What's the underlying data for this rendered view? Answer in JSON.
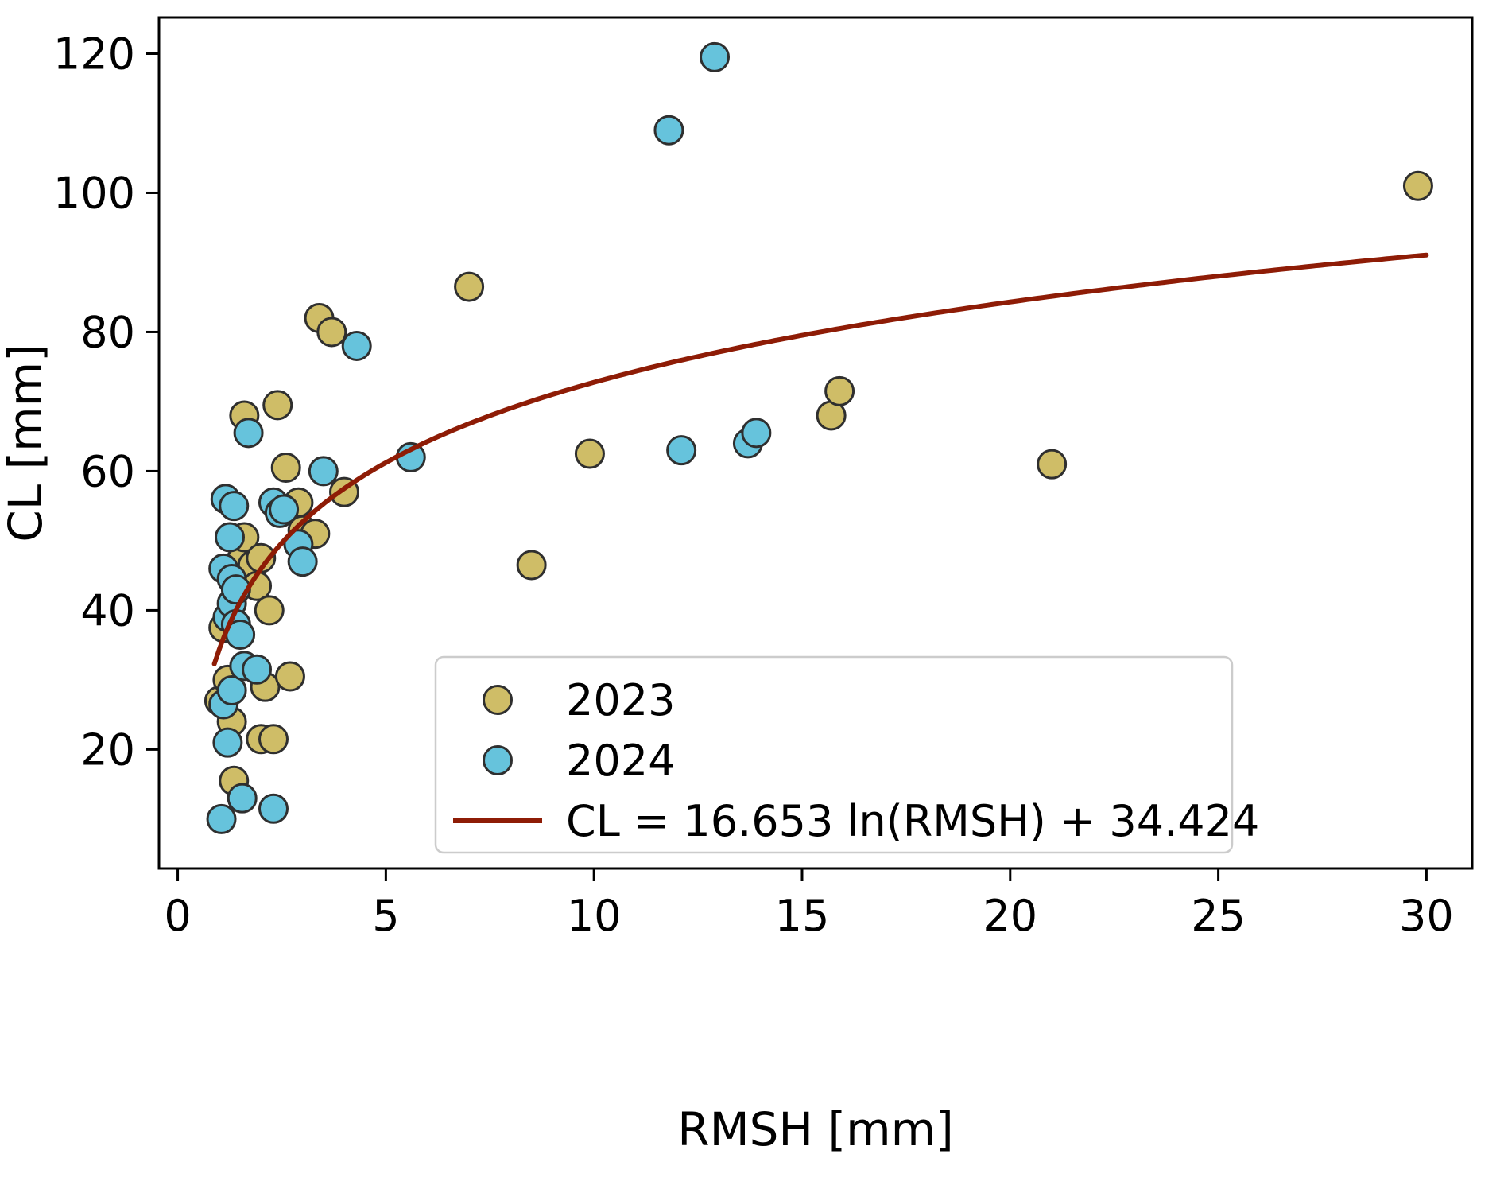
{
  "chart_data": {
    "type": "scatter",
    "title": "",
    "xlabel": "RMSH [mm]",
    "ylabel": "CL [mm]",
    "xlim": [
      -0.45,
      31.1
    ],
    "ylim": [
      2.9,
      125.2
    ],
    "xticks": [
      0,
      5,
      10,
      15,
      20,
      25,
      30
    ],
    "yticks": [
      20,
      40,
      60,
      80,
      100,
      120
    ],
    "grid": false,
    "legend_position": "lower right",
    "marker_edge_color": "#2f2f2f",
    "frame_color": "#000000",
    "series": [
      {
        "name": "2023",
        "color": "#cfbd67",
        "points": [
          [
            1.0,
            27
          ],
          [
            1.1,
            37.5
          ],
          [
            1.2,
            30
          ],
          [
            1.3,
            24
          ],
          [
            1.35,
            15.5
          ],
          [
            1.5,
            47
          ],
          [
            1.6,
            50.5
          ],
          [
            1.6,
            68
          ],
          [
            1.8,
            46.5
          ],
          [
            1.9,
            43.5
          ],
          [
            2.0,
            47.5
          ],
          [
            2.0,
            21.5
          ],
          [
            2.1,
            29
          ],
          [
            2.2,
            40
          ],
          [
            2.3,
            21.5
          ],
          [
            2.4,
            69.5
          ],
          [
            2.6,
            60.5
          ],
          [
            2.7,
            30.5
          ],
          [
            2.9,
            55.5
          ],
          [
            3.0,
            51.5
          ],
          [
            3.3,
            51
          ],
          [
            3.4,
            82
          ],
          [
            3.7,
            80
          ],
          [
            4.0,
            57
          ],
          [
            7.0,
            86.5
          ],
          [
            8.5,
            46.5
          ],
          [
            9.9,
            62.5
          ],
          [
            15.7,
            68
          ],
          [
            15.9,
            71.5
          ],
          [
            21.0,
            61
          ],
          [
            29.8,
            101
          ]
        ]
      },
      {
        "name": "2024",
        "color": "#66c3dc",
        "points": [
          [
            1.05,
            10
          ],
          [
            1.1,
            26.5
          ],
          [
            1.1,
            46
          ],
          [
            1.15,
            56
          ],
          [
            1.2,
            21
          ],
          [
            1.2,
            39
          ],
          [
            1.25,
            50.5
          ],
          [
            1.3,
            28.5
          ],
          [
            1.3,
            41
          ],
          [
            1.3,
            44.5
          ],
          [
            1.35,
            55
          ],
          [
            1.4,
            38
          ],
          [
            1.4,
            43
          ],
          [
            1.5,
            36.5
          ],
          [
            1.55,
            13
          ],
          [
            1.6,
            32
          ],
          [
            1.7,
            65.5
          ],
          [
            1.9,
            31.5
          ],
          [
            2.3,
            55.5
          ],
          [
            2.3,
            11.5
          ],
          [
            2.45,
            54
          ],
          [
            2.55,
            54.5
          ],
          [
            2.9,
            49.5
          ],
          [
            3.0,
            47
          ],
          [
            3.5,
            60
          ],
          [
            4.3,
            78
          ],
          [
            5.6,
            62
          ],
          [
            11.8,
            109
          ],
          [
            12.1,
            63
          ],
          [
            12.9,
            119.5
          ],
          [
            13.7,
            64
          ],
          [
            13.9,
            65.5
          ]
        ]
      }
    ],
    "fit_line": {
      "label": "CL = 16.653 ln(RMSH) + 34.424",
      "color": "#8e1c06",
      "coef_a": 16.653,
      "coef_b": 34.424,
      "x_range": [
        0.88,
        30
      ]
    }
  }
}
